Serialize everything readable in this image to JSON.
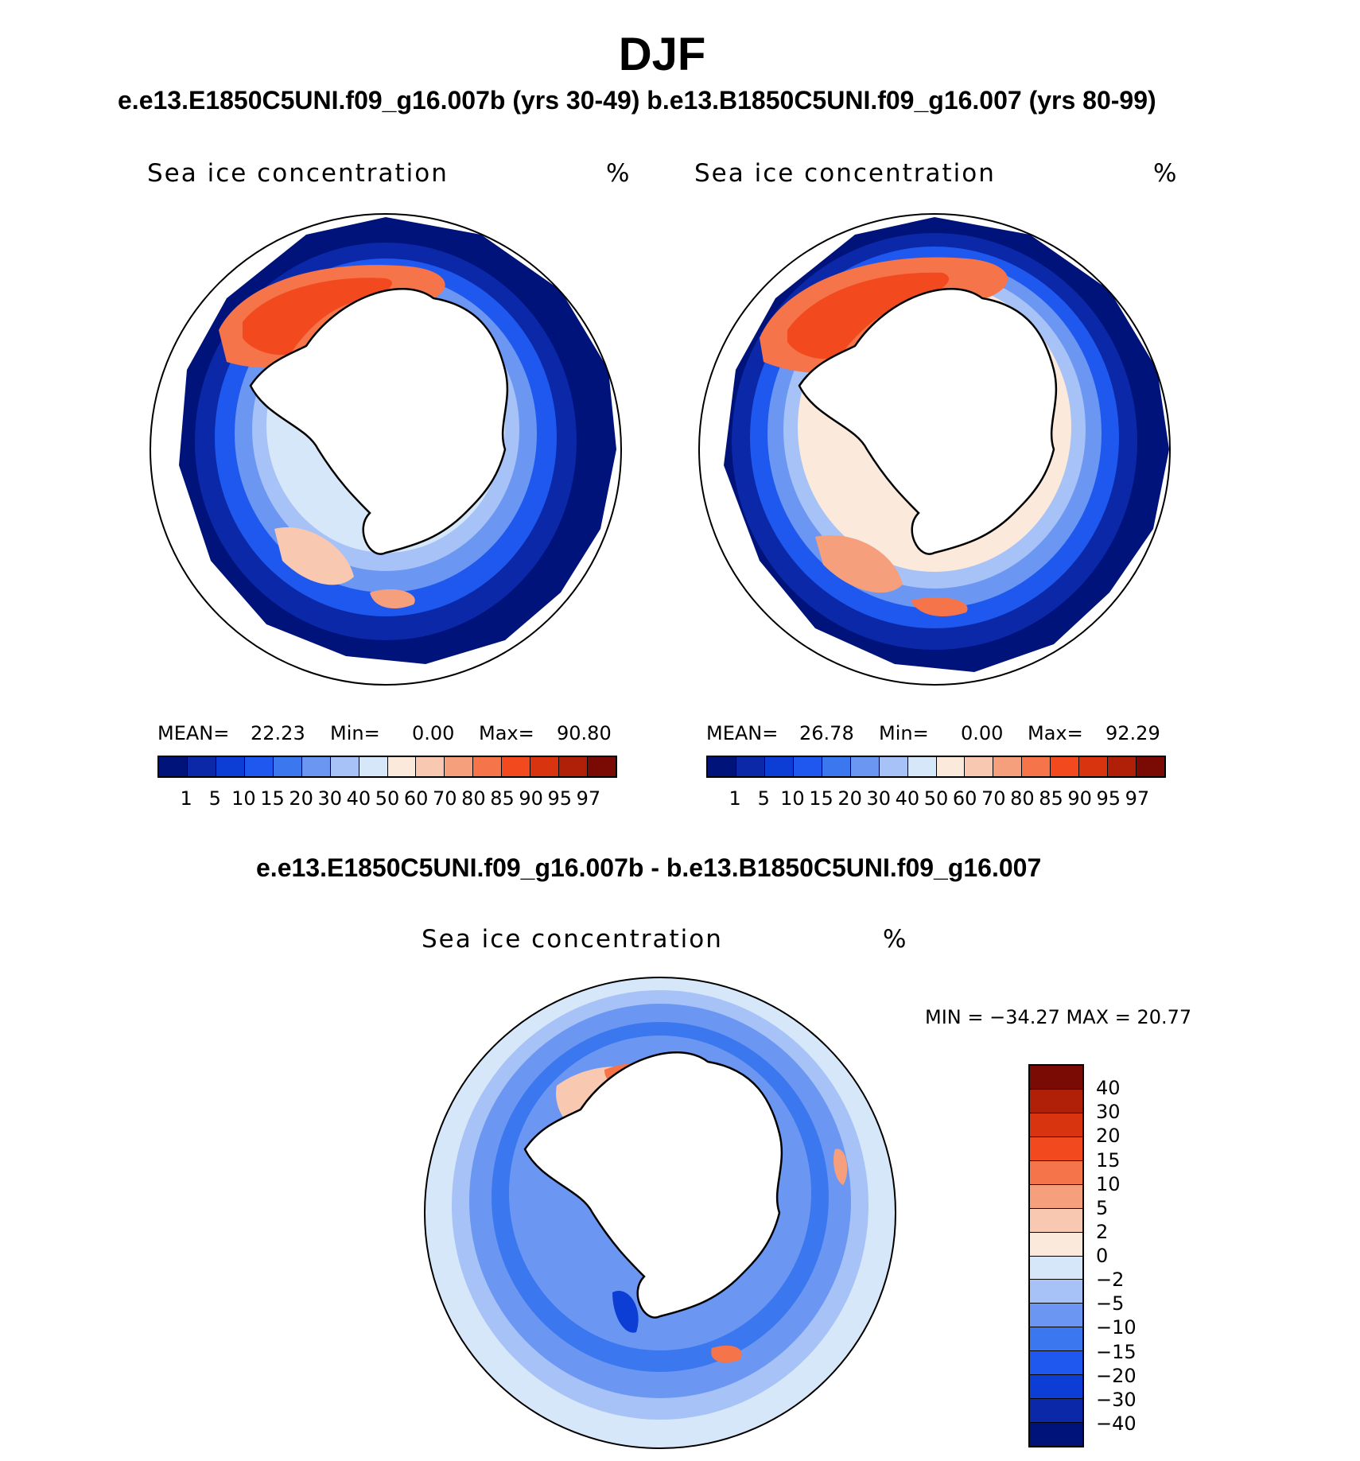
{
  "header": {
    "title": "DJF",
    "subtitle": "e.e13.E1850C5UNI.f09_g16.007b (yrs 30-49)  b.e13.B1850C5UNI.f09_g16.007 (yrs 80-99)",
    "diff_title": "e.e13.E1850C5UNI.f09_g16.007b - b.e13.B1850C5UNI.f09_g16.007"
  },
  "panels": {
    "left": {
      "variable": "Sea ice concentration",
      "units": "%",
      "mean_label": "MEAN=",
      "mean": "22.23",
      "min_label": "Min=",
      "min": "0.00",
      "max_label": "Max=",
      "max": "90.80"
    },
    "right": {
      "variable": "Sea ice concentration",
      "units": "%",
      "mean_label": "MEAN=",
      "mean": "26.78",
      "min_label": "Min=",
      "min": "0.00",
      "max_label": "Max=",
      "max": "92.29"
    },
    "diff": {
      "variable": "Sea ice concentration",
      "units": "%",
      "minmax": "MIN = −34.27 MAX =   20.77"
    }
  },
  "colorbar_abs": {
    "ticks": [
      "1",
      "5",
      "10",
      "15",
      "20",
      "30",
      "40",
      "50",
      "60",
      "70",
      "80",
      "85",
      "90",
      "95",
      "97"
    ],
    "colors": [
      "#00137a",
      "#0a28a8",
      "#0c3ed6",
      "#1e58ee",
      "#3b78f0",
      "#6b97f2",
      "#a6c2f6",
      "#d7e7fa",
      "#fbe9dc",
      "#f8c8b0",
      "#f69f7c",
      "#f6744a",
      "#f24a1e",
      "#d83410",
      "#b02008",
      "#7a0a04"
    ]
  },
  "colorbar_diff": {
    "ticks": [
      "40",
      "30",
      "20",
      "15",
      "10",
      "5",
      "2",
      "0",
      "−2",
      "−5",
      "−10",
      "−15",
      "−20",
      "−30",
      "−40"
    ],
    "colors": [
      "#7a0a04",
      "#b02008",
      "#d83410",
      "#f24a1e",
      "#f6744a",
      "#f69f7c",
      "#f8c8b0",
      "#fbe9dc",
      "#d7e7fa",
      "#a6c2f6",
      "#6b97f2",
      "#3b78f0",
      "#1e58ee",
      "#0c3ed6",
      "#0a28a8",
      "#00137a"
    ]
  }
}
